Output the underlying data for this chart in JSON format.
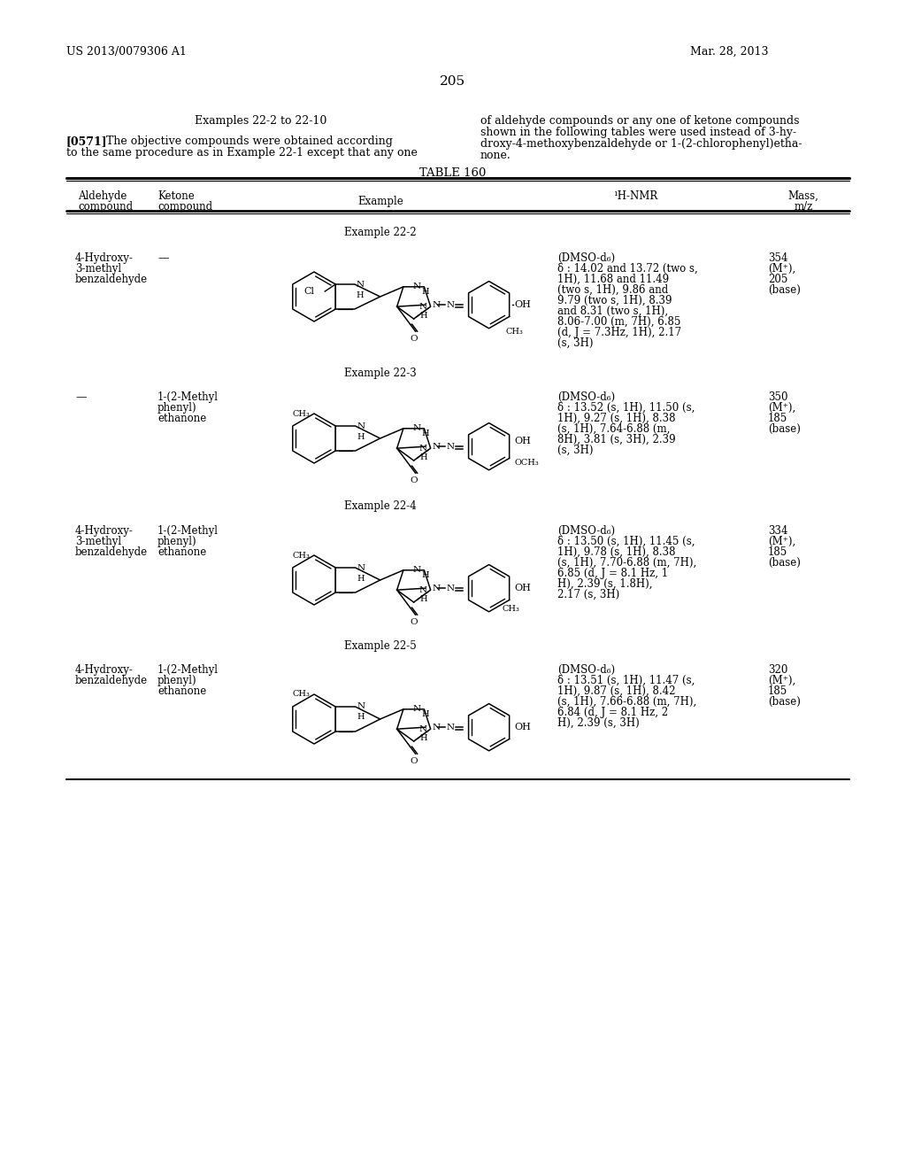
{
  "bg_color": "#ffffff",
  "page_number": "205",
  "patent_number": "US 2013/0079306 A1",
  "patent_date": "Mar. 28, 2013",
  "table_title": "TABLE 160",
  "figsize": [
    10.24,
    13.2
  ],
  "dpi": 100
}
